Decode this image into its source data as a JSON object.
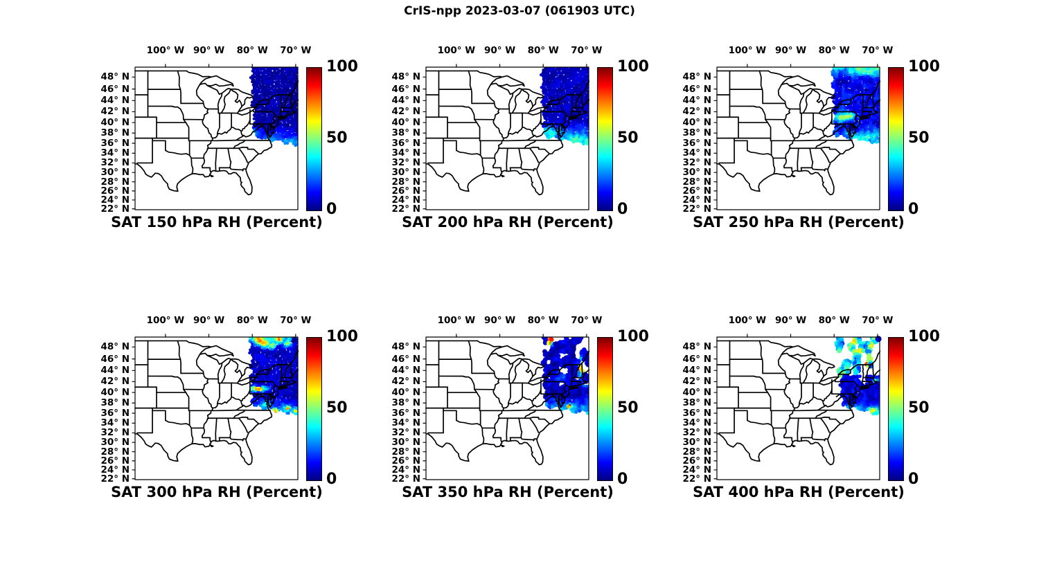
{
  "figure_title": "CrIS-npp 2023-03-07 (061903 UTC)",
  "chart_data": {
    "type": "scatter",
    "description": "Six Mercator map panels showing CrIS-npp satellite retrieved relative humidity (percent, 0-100, jet colormap) over the central/eastern United States at six pressure levels. The observation swath covers roughly 80W-69.5W and 36N-49.6N (northeastern US).",
    "projection": {
      "kind": "mercator",
      "lon_min": -107,
      "lon_max": -69.5,
      "lat_min": 21.8,
      "lat_max": 49.6
    },
    "lon_ticks": [
      {
        "lon": -100,
        "label": "100° W"
      },
      {
        "lon": -90,
        "label": "90° W"
      },
      {
        "lon": -80,
        "label": "80° W"
      },
      {
        "lon": -70,
        "label": "70° W"
      }
    ],
    "lat_ticks": [
      {
        "lat": 48,
        "label": "48° N"
      },
      {
        "lat": 46,
        "label": "46° N"
      },
      {
        "lat": 44,
        "label": "44° N"
      },
      {
        "lat": 42,
        "label": "42° N"
      },
      {
        "lat": 40,
        "label": "40° N"
      },
      {
        "lat": 38,
        "label": "38° N"
      },
      {
        "lat": 36,
        "label": "36° N"
      },
      {
        "lat": 34,
        "label": "34° N"
      },
      {
        "lat": 32,
        "label": "32° N"
      },
      {
        "lat": 30,
        "label": "30° N"
      },
      {
        "lat": 28,
        "label": "28° N"
      },
      {
        "lat": 26,
        "label": "26° N"
      },
      {
        "lat": 24,
        "label": "24° N"
      },
      {
        "lat": 22,
        "label": "22° N"
      }
    ],
    "colorbar": {
      "min": 0,
      "max": 100,
      "tick_labels": [
        "0",
        "50",
        "100"
      ],
      "colormap": "jet"
    },
    "panels": [
      {
        "title": "SAT 150 hPa RH (Percent)",
        "level_hPa": 150,
        "seed": 11,
        "summary": "Dense swath, RH mostly 0-10% (dark blue); 15-30% south of ~39N with cyan patch near 80W 38N.",
        "swath": {
          "top_left_lon": -80.2,
          "bottom_left_lon": -79.7,
          "bottom_left_lat": 37.3,
          "bottom_right_lat": 35.6
        },
        "zones": [
          {
            "lat_min": -90,
            "base": 4,
            "noise": 4,
            "cover": 0,
            "dot_r": 2.2
          }
        ],
        "bottom_band": {
          "lat": 39.5,
          "gain": 5,
          "max": 22
        },
        "features": [
          [
            -79.9,
            37.9,
            0.8,
            0.6,
            26
          ],
          [
            -75.5,
            36.6,
            1.4,
            0.7,
            12
          ],
          [
            -71.0,
            36.0,
            1.4,
            0.6,
            10
          ]
        ]
      },
      {
        "title": "SAT 200 hPa RH (Percent)",
        "level_hPa": 200,
        "seed": 22,
        "summary": "Dense swath, RH 5-12% north; cyan band 25-45% south of ~40N, greener near coast 78W 38N.",
        "swath": {
          "top_left_lon": -80.3,
          "bottom_left_lon": -79.8,
          "bottom_left_lat": 37.5,
          "bottom_right_lat": 35.8
        },
        "zones": [
          {
            "lat_min": -90,
            "base": 6,
            "noise": 5,
            "cover": 0,
            "dot_r": 2.2
          }
        ],
        "bottom_band": {
          "lat": 40.5,
          "gain": 6,
          "max": 32
        },
        "features": [
          [
            -77.9,
            38.2,
            0.9,
            0.7,
            18
          ],
          [
            -79.6,
            38.3,
            0.5,
            0.5,
            14
          ],
          [
            -73.5,
            36.8,
            1.6,
            0.7,
            12
          ],
          [
            -70.5,
            36.9,
            1.1,
            0.5,
            10
          ]
        ]
      },
      {
        "title": "SAT 250 hPa RH (Percent)",
        "level_hPa": 250,
        "seed": 33,
        "summary": "Blue swath 10-20%; cyan/green streaks 30-50% along top edge (48-49.5N); yellow-green patch 50-65% near 78W 41N; cyan south of 39N.",
        "swath": {
          "top_left_lon": -80.4,
          "bottom_left_lon": -79.9,
          "bottom_left_lat": 37.6,
          "bottom_right_lat": 35.9
        },
        "zones": [
          {
            "lat_min": -90,
            "base": 11,
            "noise": 9,
            "cover": 0,
            "dot_r": 2.2
          }
        ],
        "bottom_band": {
          "lat": 40.0,
          "gain": 5,
          "max": 24
        },
        "top_band": {
          "lat": 47.8,
          "gain": 15,
          "max": 30
        },
        "features": [
          [
            -78.3,
            40.9,
            1.3,
            0.55,
            46
          ],
          [
            -76.1,
            41.3,
            0.8,
            0.4,
            38
          ],
          [
            -73.5,
            49.0,
            1.6,
            0.5,
            18
          ],
          [
            -70.8,
            48.4,
            1.1,
            0.5,
            16
          ],
          [
            -74.5,
            36.9,
            1.6,
            0.5,
            14
          ],
          [
            -71.0,
            37.5,
            1.2,
            0.5,
            12
          ]
        ]
      },
      {
        "title": "SAT 300 hPa RH (Percent)",
        "level_hPa": 300,
        "seed": 44,
        "summary": "Blue swath 5-15%; mixed cyan/orange band 30-90% along top edge with blue blob near 70W 49N; orange streak 60-85% near 40.6N; cyan with orange spots south of 38.5N.",
        "swath": {
          "top_left_lon": -80.5,
          "bottom_left_lon": -80.0,
          "bottom_left_lat": 37.4,
          "bottom_right_lat": 35.7
        },
        "zones": [
          {
            "lat_min": -90,
            "base": 7,
            "noise": 6,
            "cover": 0,
            "dot_r": 2.2
          }
        ],
        "bottom_band": {
          "lat": 39.0,
          "gain": 7,
          "max": 38
        },
        "top_band": {
          "lat": 47.9,
          "gain": 20,
          "max": 34
        },
        "features": [
          [
            -78.6,
            49.1,
            0.6,
            0.5,
            42
          ],
          [
            -77.2,
            48.5,
            0.7,
            0.5,
            50
          ],
          [
            -75.3,
            48.1,
            0.6,
            0.4,
            48
          ],
          [
            -73.8,
            49.2,
            0.5,
            0.4,
            38
          ],
          [
            -71.8,
            48.4,
            0.6,
            0.4,
            34
          ],
          [
            -70.3,
            49.2,
            0.5,
            0.4,
            -45
          ],
          [
            -78.7,
            40.6,
            1.6,
            0.35,
            66
          ],
          [
            -74.8,
            36.5,
            0.45,
            0.3,
            52
          ],
          [
            -71.8,
            36.9,
            0.45,
            0.3,
            48
          ],
          [
            -69.9,
            36.4,
            0.45,
            0.3,
            44
          ],
          [
            -76.9,
            37.7,
            0.9,
            0.45,
            26
          ]
        ]
      },
      {
        "title": "SAT 350 hPa RH (Percent)",
        "level_hPa": 350,
        "seed": 55,
        "summary": "Patchy blobby coverage north of ~42N, mostly 5-15% dark blue with red streaks 85-100% near 78W 49N and 71W 44N; cyan 25-40% south of 39.5N with red spot near 74W 37N.",
        "swath": {
          "top_left_lon": -80.0,
          "bottom_left_lon": -79.5,
          "bottom_left_lat": 37.5,
          "bottom_right_lat": 35.9
        },
        "zones": [
          {
            "lat_min": 41.5,
            "base": 7,
            "noise": 9,
            "cover": 0.46,
            "dot_r": 3.4
          },
          {
            "lat_min": -90,
            "base": 7,
            "noise": 8,
            "cover": 0.14,
            "dot_r": 2.6
          }
        ],
        "bottom_band": {
          "lat": 39.5,
          "gain": 7,
          "max": 34
        },
        "features": [
          [
            -78.3,
            49.0,
            0.45,
            0.6,
            85
          ],
          [
            -71.2,
            44.3,
            0.3,
            1.0,
            88
          ],
          [
            -73.8,
            37.3,
            0.3,
            0.25,
            78
          ],
          [
            -75.6,
            42.6,
            0.9,
            0.5,
            18
          ],
          [
            -70.1,
            41.2,
            0.7,
            0.45,
            22
          ]
        ]
      },
      {
        "title": "SAT 400 hPa RH (Percent)",
        "level_hPa": 400,
        "seed": 66,
        "summary": "Sparse cyan/yellow blobs 20-70% north of ~43N with dark-red spots 90-100% near 70.5W 44N and 70W 42N; dense blue swath 5-20% between 37-42N east of 78W; cyan/orange 30-55% along southern edge; isolated blue dot near 69.8W 49.3N.",
        "swath": {
          "top_left_lon": -79.5,
          "bottom_left_lon": -77.9,
          "bottom_left_lat": 37.4,
          "bottom_right_lat": 35.8
        },
        "zones": [
          {
            "lat_min": 43.0,
            "base": 34,
            "noise": 24,
            "cover": 0.5,
            "dot_r": 3.4
          },
          {
            "lat_min": -90,
            "base": 10,
            "noise": 8,
            "cover": 0.1,
            "dot_r": 2.6
          }
        ],
        "bottom_band": {
          "lat": 38.2,
          "gain": 9,
          "max": 42
        },
        "features": [
          [
            -75.6,
            48.6,
            0.6,
            0.5,
            28
          ],
          [
            -73.9,
            47.1,
            0.5,
            0.4,
            32
          ],
          [
            -76.6,
            46.2,
            0.5,
            0.4,
            26
          ],
          [
            -71.3,
            47.9,
            0.5,
            0.5,
            28
          ],
          [
            -70.6,
            44.2,
            0.3,
            0.3,
            58
          ],
          [
            -70.3,
            42.1,
            0.3,
            0.3,
            56
          ],
          [
            -72.7,
            44.9,
            0.35,
            0.3,
            42
          ],
          [
            -77.5,
            37.2,
            0.35,
            0.25,
            52
          ],
          [
            -73.4,
            36.0,
            0.5,
            0.3,
            48
          ],
          [
            -75.0,
            36.8,
            0.6,
            0.4,
            30
          ],
          [
            -71.0,
            36.5,
            0.9,
            0.45,
            32
          ]
        ],
        "extra_dots": [
          {
            "lon": -69.8,
            "lat": 49.3,
            "r": 4.5,
            "value": 8
          }
        ]
      }
    ]
  }
}
